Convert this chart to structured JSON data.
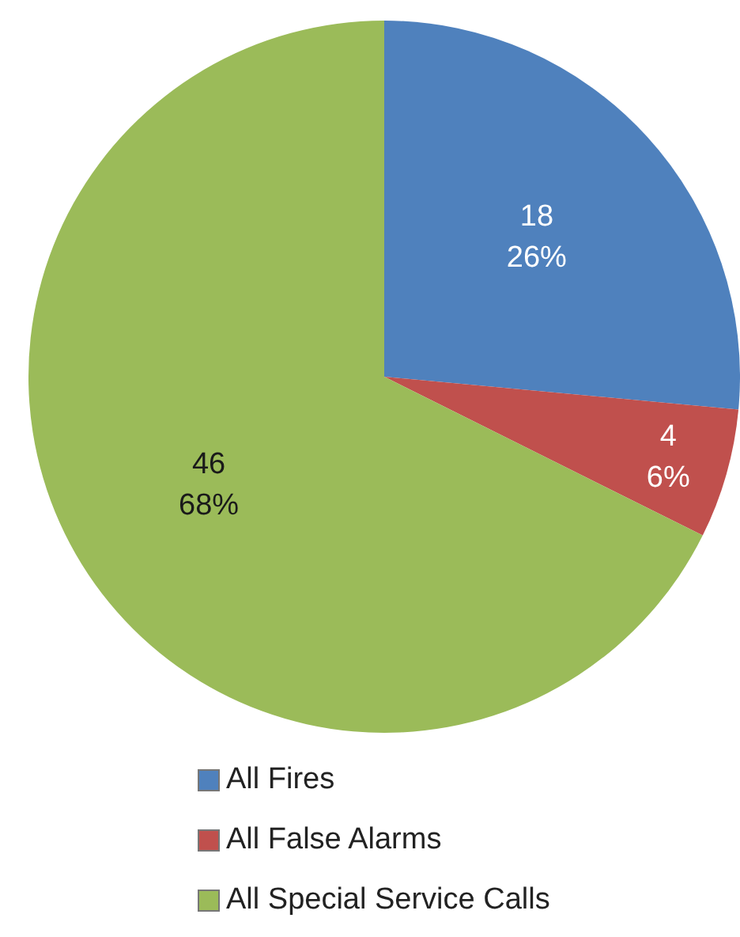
{
  "chart_data": {
    "type": "pie",
    "categories": [
      "All Fires",
      "All False Alarms",
      "All Special Service Calls"
    ],
    "values": [
      18,
      4,
      46
    ],
    "colors": [
      "#4f81bd",
      "#c0504d",
      "#9bbb59"
    ],
    "value_labels": [
      "18\n26%",
      "4\n6%",
      "46\n68%"
    ],
    "legend": "bottom"
  }
}
